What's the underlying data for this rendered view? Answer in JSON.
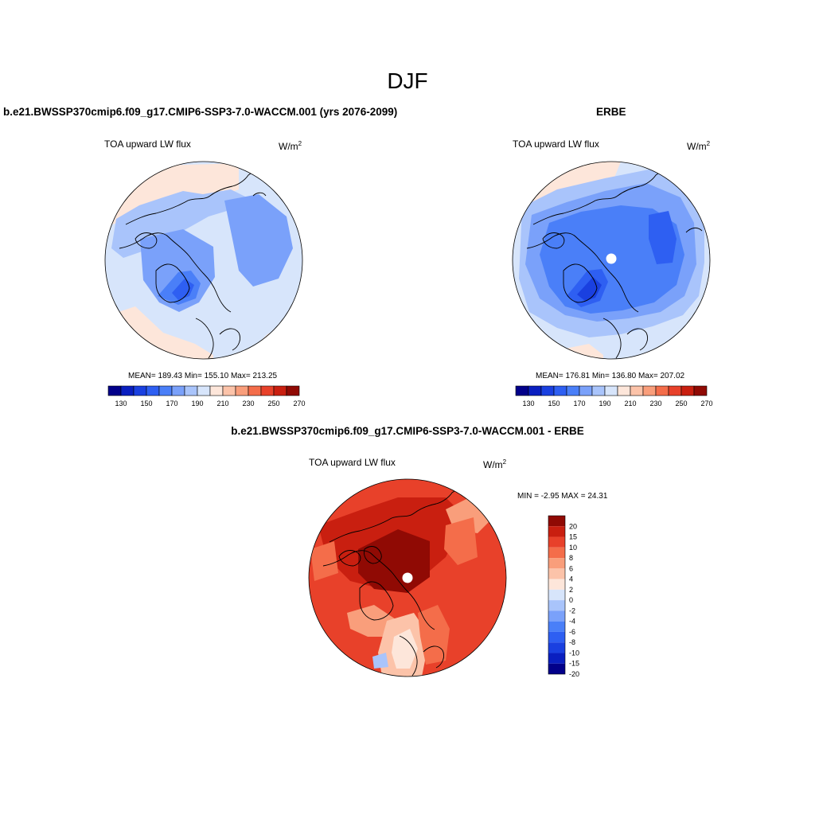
{
  "figure": {
    "title": "DJF",
    "panel_left_title": "b.e21.BWSSP370cmip6.f09_g17.CMIP6-SSP3-7.0-WACCM.001 (yrs 2076-2099)",
    "panel_right_title": "ERBE",
    "panel_diff_title": "b.e21.BWSSP370cmip6.f09_g17.CMIP6-SSP3-7.0-WACCM.001 - ERBE",
    "variable": "TOA upward LW flux",
    "units_base": "W/m",
    "units_exp": "2"
  },
  "colors": {
    "abs_palette": [
      "#02008a",
      "#0a1fc0",
      "#1a40e0",
      "#2e5ff2",
      "#4a7ff8",
      "#7aa1fa",
      "#a9c4fb",
      "#d7e5fb",
      "#fde6da",
      "#fcc3a9",
      "#f99e7b",
      "#f46d4a",
      "#e8412a",
      "#c91f10",
      "#900a04"
    ],
    "diff_palette": [
      "#02008a",
      "#0a1fc0",
      "#1a40e0",
      "#2e5ff2",
      "#4a7ff8",
      "#7aa1fa",
      "#a9c4fb",
      "#d7e5fb",
      "#fde6da",
      "#fcc3a9",
      "#f99e7b",
      "#f46d4a",
      "#e8412a",
      "#c91f10",
      "#900a04"
    ]
  },
  "chart_data": [
    {
      "type": "heatmap",
      "name": "model",
      "projection": "north polar stereographic",
      "title": "TOA upward LW flux",
      "units": "W/m2",
      "stats": {
        "mean": 189.43,
        "min": 155.1,
        "max": 213.25
      },
      "stats_text": "MEAN= 189.43  Min= 155.10  Max= 213.25",
      "colorbar_levels": [
        130,
        140,
        150,
        160,
        170,
        180,
        190,
        200,
        210,
        220,
        230,
        240,
        250,
        260,
        270
      ],
      "colorbar_tick_labels": [
        "130",
        "150",
        "170",
        "190",
        "210",
        "230",
        "250",
        "270"
      ]
    },
    {
      "type": "heatmap",
      "name": "ERBE",
      "projection": "north polar stereographic",
      "title": "TOA upward LW flux",
      "units": "W/m2",
      "stats": {
        "mean": 176.81,
        "min": 136.8,
        "max": 207.02
      },
      "stats_text": "MEAN= 176.81  Min= 136.80  Max= 207.02",
      "colorbar_levels": [
        130,
        140,
        150,
        160,
        170,
        180,
        190,
        200,
        210,
        220,
        230,
        240,
        250,
        260,
        270
      ],
      "colorbar_tick_labels": [
        "130",
        "150",
        "170",
        "190",
        "210",
        "230",
        "250",
        "270"
      ]
    },
    {
      "type": "heatmap",
      "name": "difference",
      "projection": "north polar stereographic",
      "title": "TOA upward LW flux",
      "units": "W/m2",
      "stats": {
        "min": -2.95,
        "max": 24.31
      },
      "stats_text": "MIN =  -2.95 MAX =  24.31",
      "colorbar_levels": [
        -20,
        -15,
        -10,
        -8,
        -6,
        -4,
        -2,
        0,
        2,
        4,
        6,
        8,
        10,
        15,
        20
      ],
      "colorbar_tick_labels": [
        "20",
        "15",
        "10",
        "8",
        "6",
        "4",
        "2",
        "0",
        "-2",
        "-4",
        "-6",
        "-8",
        "-10",
        "-15",
        "-20"
      ]
    }
  ]
}
